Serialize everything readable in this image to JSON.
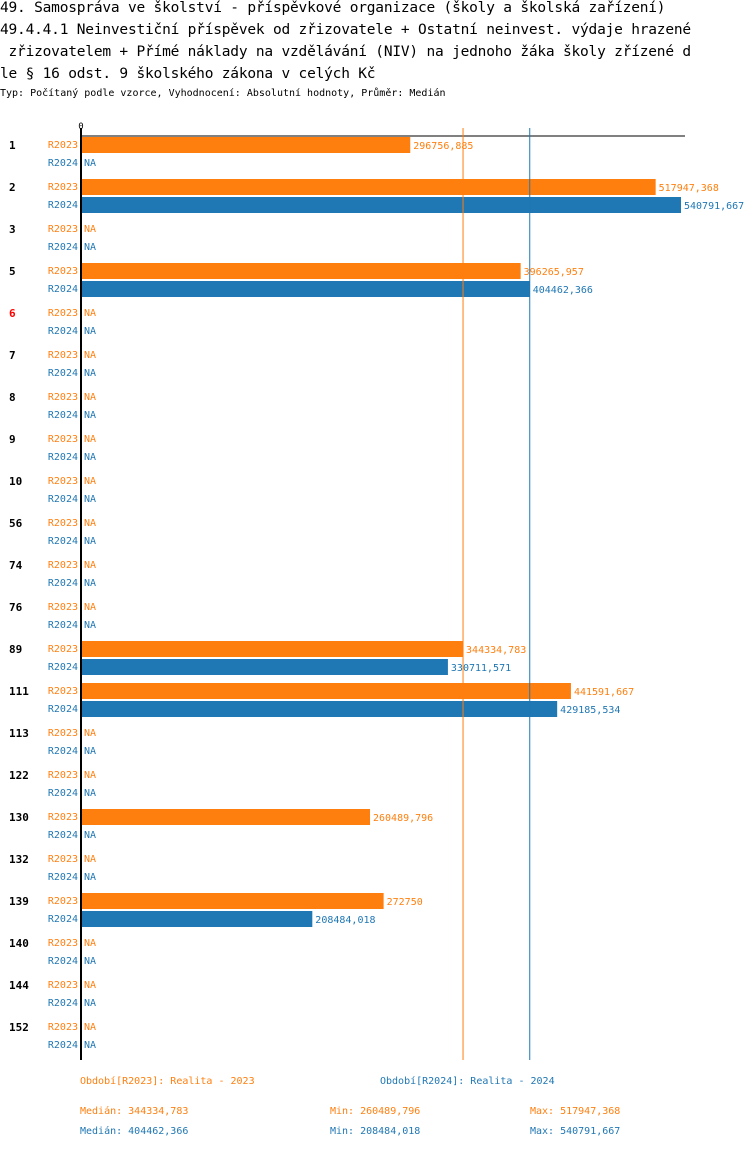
{
  "header": {
    "title_lines": [
      "49. Samospráva ve školství - příspěvkové organizace (školy a školská zařízení)",
      "49.4.4.1 Neinvestiční příspěvek od zřizovatele + Ostatní neinvest. výdaje hrazené",
      " zřizovatelem + Přímé náklady na vzdělávání (NIV) na jednoho žáka školy zřízené d",
      "le § 16 odst. 9 školského zákona v celých Kč"
    ],
    "subtitle": "Typ: Počítaný podle vzorce, Vyhodnocení: Absolutní hodnoty, Průměr: Medián"
  },
  "colors": {
    "R2023": "#ff7f0e",
    "R2024": "#1f77b4",
    "highlight": "#ff0000",
    "axis": "#000000"
  },
  "chart_data": {
    "type": "bar",
    "orientation": "horizontal",
    "title": "49.4.4.1 Neinvestiční příspěvek od zřizovatele + Ostatní neinvest. výdaje hrazené zřizovatelem + Přímé náklady na vzdělávání (NIV) na jednoho žáka školy zřízené dle § 16 odst. 9 školského zákona v celých Kč",
    "x_tick_labels": [
      "0"
    ],
    "xlim": [
      0,
      540791.667
    ],
    "grid": false,
    "categories": [
      "1",
      "2",
      "3",
      "5",
      "6",
      "7",
      "8",
      "9",
      "10",
      "56",
      "74",
      "76",
      "89",
      "111",
      "113",
      "122",
      "130",
      "132",
      "139",
      "140",
      "144",
      "152"
    ],
    "highlighted_category": "6",
    "series": [
      {
        "name": "R2023",
        "values": [
          296756.885,
          517947.368,
          null,
          396265.957,
          null,
          null,
          null,
          null,
          null,
          null,
          null,
          null,
          344334.783,
          441591.667,
          null,
          null,
          260489.796,
          null,
          272750,
          null,
          null,
          null
        ],
        "labels": [
          "296756,885",
          "517947,368",
          "NA",
          "396265,957",
          "NA",
          "NA",
          "NA",
          "NA",
          "NA",
          "NA",
          "NA",
          "NA",
          "344334,783",
          "441591,667",
          "NA",
          "NA",
          "260489,796",
          "NA",
          "272750",
          "NA",
          "NA",
          "NA"
        ],
        "median": 344334.783
      },
      {
        "name": "R2024",
        "values": [
          null,
          540791.667,
          null,
          404462.366,
          null,
          null,
          null,
          null,
          null,
          null,
          null,
          null,
          330711.571,
          429185.534,
          null,
          null,
          null,
          null,
          208484.018,
          null,
          null,
          null
        ],
        "labels": [
          "NA",
          "540791,667",
          "NA",
          "404462,366",
          "NA",
          "NA",
          "NA",
          "NA",
          "NA",
          "NA",
          "NA",
          "NA",
          "330711,571",
          "429185,534",
          "NA",
          "NA",
          "NA",
          "NA",
          "208484,018",
          "NA",
          "NA",
          "NA"
        ],
        "median": 404462.366
      }
    ]
  },
  "legend": {
    "period_2023": "Období[R2023]: Realita - 2023",
    "period_2024": "Období[R2024]: Realita - 2024",
    "stats_2023": {
      "median": "Medián: 344334,783",
      "min": "Min: 260489,796",
      "max": "Max: 517947,368"
    },
    "stats_2024": {
      "median": "Medián: 404462,366",
      "min": "Min: 208484,018",
      "max": "Max: 540791,667"
    }
  }
}
